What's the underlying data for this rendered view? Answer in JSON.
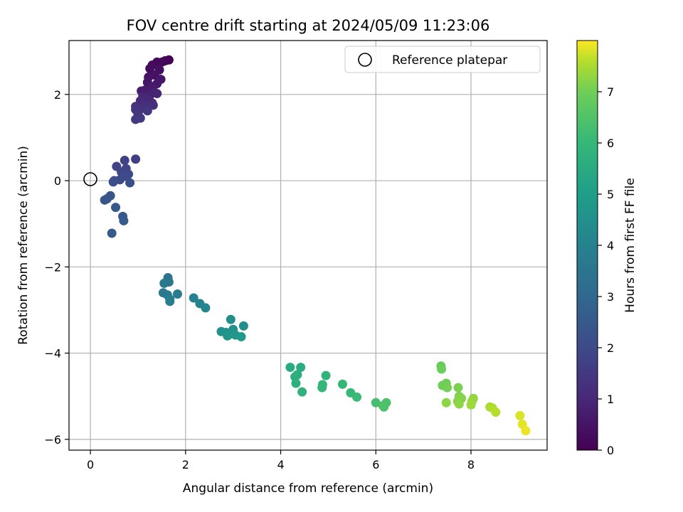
{
  "chart_data": {
    "type": "scatter",
    "title": "FOV centre drift starting at 2024/05/09 11:23:06",
    "xlabel": "Angular distance from reference (arcmin)",
    "ylabel": "Rotation from reference (arcmin)",
    "xlim": [
      -0.45,
      9.6
    ],
    "ylim": [
      -6.25,
      3.25
    ],
    "xticks": [
      0,
      2,
      4,
      6,
      8
    ],
    "yticks": [
      -6,
      -4,
      -2,
      0,
      2
    ],
    "xtick_labels": [
      "0",
      "2",
      "4",
      "6",
      "8"
    ],
    "ytick_labels": [
      "−6",
      "−4",
      "−2",
      "0",
      "2"
    ],
    "grid": true,
    "legend": {
      "label": "Reference platepar",
      "placement": "top-right",
      "marker": "open-circle"
    },
    "reference": {
      "x": 0,
      "y": 0
    },
    "colorbar": {
      "label": "Hours from first FF file",
      "range": [
        0,
        8
      ],
      "ticks": [
        0,
        1,
        2,
        3,
        4,
        5,
        6,
        7
      ],
      "tick_labels": [
        "0",
        "1",
        "2",
        "3",
        "4",
        "5",
        "6",
        "7"
      ],
      "colormap": "viridis"
    },
    "points": [
      {
        "x": 1.65,
        "y": 2.8,
        "t": 0.05
      },
      {
        "x": 1.57,
        "y": 2.78,
        "t": 0.1
      },
      {
        "x": 1.5,
        "y": 2.75,
        "t": 0.15
      },
      {
        "x": 1.4,
        "y": 2.75,
        "t": 0.2
      },
      {
        "x": 1.3,
        "y": 2.68,
        "t": 0.25
      },
      {
        "x": 1.25,
        "y": 2.6,
        "t": 0.3
      },
      {
        "x": 1.45,
        "y": 2.57,
        "t": 0.35
      },
      {
        "x": 1.35,
        "y": 2.45,
        "t": 0.4
      },
      {
        "x": 1.22,
        "y": 2.4,
        "t": 0.45
      },
      {
        "x": 1.2,
        "y": 2.28,
        "t": 0.5
      },
      {
        "x": 1.48,
        "y": 2.35,
        "t": 0.55
      },
      {
        "x": 1.4,
        "y": 2.25,
        "t": 0.6
      },
      {
        "x": 1.3,
        "y": 2.18,
        "t": 0.65
      },
      {
        "x": 1.15,
        "y": 2.1,
        "t": 0.7
      },
      {
        "x": 1.07,
        "y": 2.08,
        "t": 0.75
      },
      {
        "x": 1.35,
        "y": 2.05,
        "t": 0.8
      },
      {
        "x": 1.25,
        "y": 1.98,
        "t": 0.85
      },
      {
        "x": 1.4,
        "y": 2.02,
        "t": 0.9
      },
      {
        "x": 1.1,
        "y": 1.95,
        "t": 0.95
      },
      {
        "x": 1.2,
        "y": 1.9,
        "t": 1.0
      },
      {
        "x": 1.05,
        "y": 1.85,
        "t": 1.05
      },
      {
        "x": 1.3,
        "y": 1.8,
        "t": 1.1
      },
      {
        "x": 1.15,
        "y": 1.75,
        "t": 1.15
      },
      {
        "x": 1.32,
        "y": 1.75,
        "t": 1.2
      },
      {
        "x": 0.95,
        "y": 1.72,
        "t": 1.25
      },
      {
        "x": 1.1,
        "y": 1.68,
        "t": 1.3
      },
      {
        "x": 0.95,
        "y": 1.65,
        "t": 1.35
      },
      {
        "x": 1.2,
        "y": 1.62,
        "t": 1.4
      },
      {
        "x": 1.0,
        "y": 1.55,
        "t": 1.45
      },
      {
        "x": 1.05,
        "y": 1.45,
        "t": 1.5
      },
      {
        "x": 0.95,
        "y": 1.42,
        "t": 1.55
      },
      {
        "x": 0.95,
        "y": 0.5,
        "t": 1.7
      },
      {
        "x": 0.72,
        "y": 0.47,
        "t": 1.75
      },
      {
        "x": 0.55,
        "y": 0.33,
        "t": 1.8
      },
      {
        "x": 0.75,
        "y": 0.28,
        "t": 1.85
      },
      {
        "x": 0.65,
        "y": 0.2,
        "t": 1.9
      },
      {
        "x": 0.8,
        "y": 0.15,
        "t": 1.95
      },
      {
        "x": 0.7,
        "y": 0.1,
        "t": 2.0
      },
      {
        "x": 0.62,
        "y": 0.02,
        "t": 2.05
      },
      {
        "x": 0.5,
        "y": 0.0,
        "t": 2.1
      },
      {
        "x": 0.48,
        "y": -0.03,
        "t": 2.15
      },
      {
        "x": 0.83,
        "y": -0.05,
        "t": 2.2
      },
      {
        "x": 0.42,
        "y": -0.35,
        "t": 2.3
      },
      {
        "x": 0.35,
        "y": -0.42,
        "t": 2.35
      },
      {
        "x": 0.3,
        "y": -0.45,
        "t": 2.4
      },
      {
        "x": 0.53,
        "y": -0.62,
        "t": 2.45
      },
      {
        "x": 0.68,
        "y": -0.83,
        "t": 2.5
      },
      {
        "x": 0.7,
        "y": -0.93,
        "t": 2.55
      },
      {
        "x": 0.45,
        "y": -1.22,
        "t": 2.6
      },
      {
        "x": 1.63,
        "y": -2.25,
        "t": 3.5
      },
      {
        "x": 1.65,
        "y": -2.35,
        "t": 3.55
      },
      {
        "x": 1.55,
        "y": -2.38,
        "t": 3.6
      },
      {
        "x": 1.53,
        "y": -2.6,
        "t": 3.65
      },
      {
        "x": 1.62,
        "y": -2.65,
        "t": 3.7
      },
      {
        "x": 1.83,
        "y": -2.63,
        "t": 3.75
      },
      {
        "x": 1.67,
        "y": -2.75,
        "t": 3.8
      },
      {
        "x": 1.67,
        "y": -2.8,
        "t": 3.85
      },
      {
        "x": 2.17,
        "y": -2.72,
        "t": 4.0
      },
      {
        "x": 2.3,
        "y": -2.85,
        "t": 4.05
      },
      {
        "x": 2.42,
        "y": -2.95,
        "t": 4.1
      },
      {
        "x": 2.95,
        "y": -3.22,
        "t": 4.4
      },
      {
        "x": 3.22,
        "y": -3.37,
        "t": 4.45
      },
      {
        "x": 3.0,
        "y": -3.45,
        "t": 4.5
      },
      {
        "x": 2.75,
        "y": -3.5,
        "t": 4.55
      },
      {
        "x": 2.85,
        "y": -3.52,
        "t": 4.6
      },
      {
        "x": 2.95,
        "y": -3.55,
        "t": 4.65
      },
      {
        "x": 2.88,
        "y": -3.6,
        "t": 4.7
      },
      {
        "x": 3.05,
        "y": -3.58,
        "t": 4.75
      },
      {
        "x": 3.17,
        "y": -3.62,
        "t": 4.8
      },
      {
        "x": 4.2,
        "y": -4.33,
        "t": 5.5
      },
      {
        "x": 4.42,
        "y": -4.33,
        "t": 5.55
      },
      {
        "x": 4.35,
        "y": -4.5,
        "t": 5.6
      },
      {
        "x": 4.3,
        "y": -4.55,
        "t": 5.65
      },
      {
        "x": 4.32,
        "y": -4.7,
        "t": 5.7
      },
      {
        "x": 4.45,
        "y": -4.9,
        "t": 5.75
      },
      {
        "x": 4.95,
        "y": -4.52,
        "t": 5.85
      },
      {
        "x": 4.88,
        "y": -4.73,
        "t": 5.9
      },
      {
        "x": 4.87,
        "y": -4.8,
        "t": 5.95
      },
      {
        "x": 5.3,
        "y": -4.72,
        "t": 6.0
      },
      {
        "x": 5.47,
        "y": -4.92,
        "t": 6.05
      },
      {
        "x": 5.6,
        "y": -5.02,
        "t": 6.1
      },
      {
        "x": 6.0,
        "y": -5.15,
        "t": 6.3
      },
      {
        "x": 6.15,
        "y": -5.22,
        "t": 6.35
      },
      {
        "x": 6.22,
        "y": -5.15,
        "t": 6.4
      },
      {
        "x": 6.17,
        "y": -5.25,
        "t": 6.45
      },
      {
        "x": 7.37,
        "y": -4.3,
        "t": 6.9
      },
      {
        "x": 7.38,
        "y": -4.37,
        "t": 6.95
      },
      {
        "x": 7.4,
        "y": -4.75,
        "t": 7.0
      },
      {
        "x": 7.48,
        "y": -4.7,
        "t": 7.0
      },
      {
        "x": 7.5,
        "y": -4.8,
        "t": 7.05
      },
      {
        "x": 7.73,
        "y": -4.8,
        "t": 7.1
      },
      {
        "x": 7.75,
        "y": -5.0,
        "t": 7.15
      },
      {
        "x": 7.8,
        "y": -5.05,
        "t": 7.2
      },
      {
        "x": 7.72,
        "y": -5.12,
        "t": 7.2
      },
      {
        "x": 7.75,
        "y": -5.18,
        "t": 7.25
      },
      {
        "x": 7.48,
        "y": -5.15,
        "t": 7.25
      },
      {
        "x": 8.05,
        "y": -5.05,
        "t": 7.3
      },
      {
        "x": 8.02,
        "y": -5.12,
        "t": 7.35
      },
      {
        "x": 8.0,
        "y": -5.2,
        "t": 7.4
      },
      {
        "x": 8.4,
        "y": -5.25,
        "t": 7.5
      },
      {
        "x": 8.45,
        "y": -5.27,
        "t": 7.55
      },
      {
        "x": 8.52,
        "y": -5.37,
        "t": 7.6
      },
      {
        "x": 9.03,
        "y": -5.45,
        "t": 7.8
      },
      {
        "x": 9.08,
        "y": -5.65,
        "t": 7.85
      },
      {
        "x": 9.15,
        "y": -5.8,
        "t": 7.9
      }
    ]
  }
}
